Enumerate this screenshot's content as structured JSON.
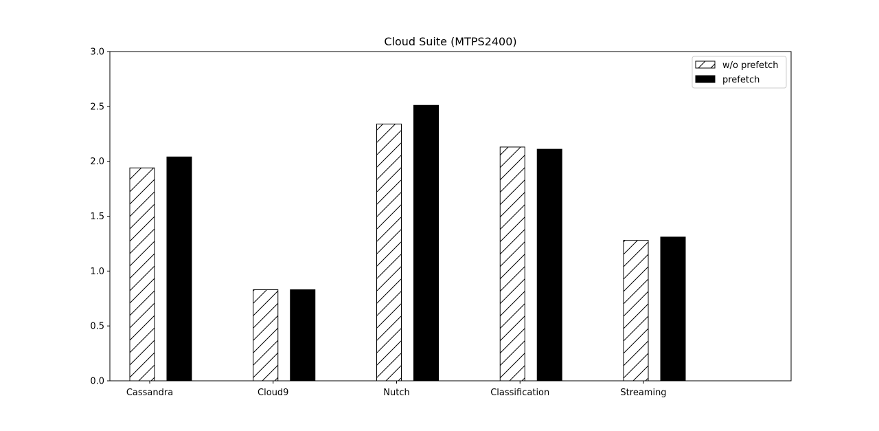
{
  "chart_data": {
    "type": "bar",
    "title": "Cloud Suite (MTPS2400)",
    "xlabel": "",
    "ylabel": "",
    "categories": [
      "Cassandra",
      "Cloud9",
      "Nutch",
      "Classification",
      "Streaming"
    ],
    "series": [
      {
        "name": "w/o prefetch",
        "values": [
          1.94,
          0.83,
          2.34,
          2.13,
          1.28
        ],
        "fill": "#ffffff",
        "pattern": "hatch"
      },
      {
        "name": "prefetch",
        "values": [
          2.04,
          0.83,
          2.51,
          2.11,
          1.31
        ],
        "fill": "#000000",
        "pattern": "solid"
      }
    ],
    "ylim": [
      0,
      3.0
    ],
    "yticks": [
      "0.0",
      "0.5",
      "1.0",
      "1.5",
      "2.0",
      "2.5",
      "3.0"
    ],
    "grid": false,
    "legend_position": "top-right"
  }
}
